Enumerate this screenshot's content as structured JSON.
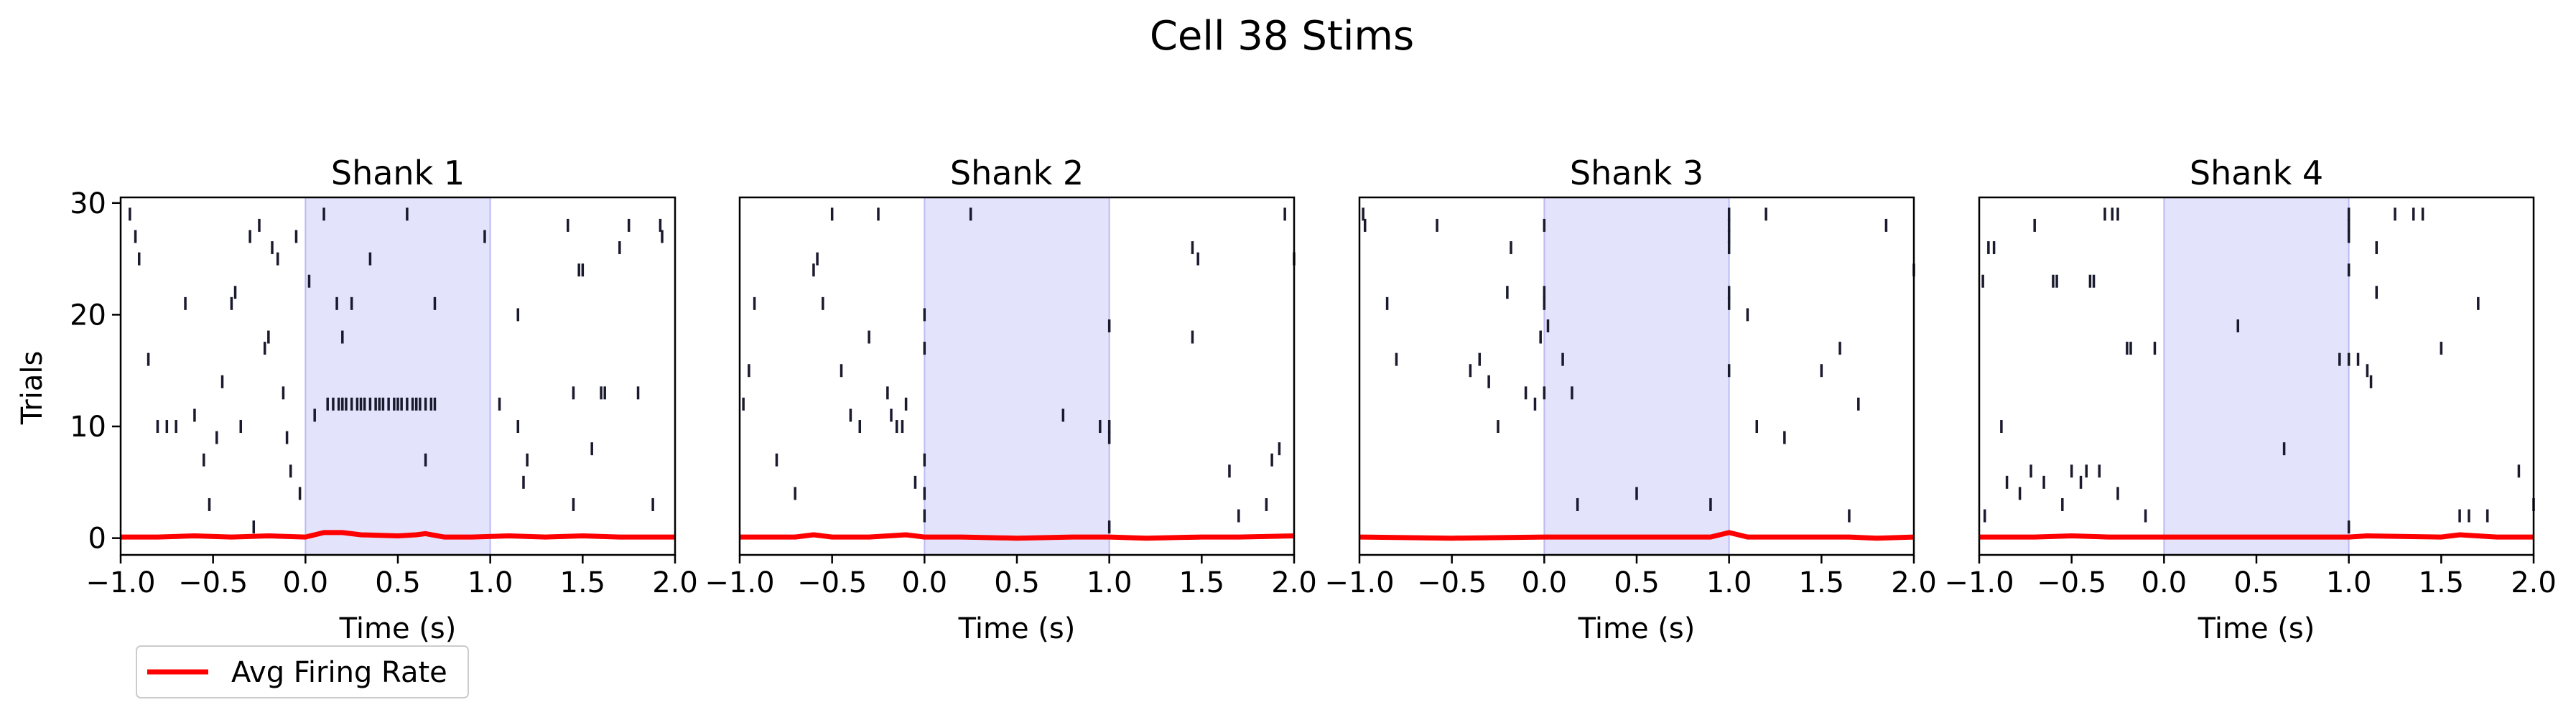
{
  "figure": {
    "title": "Cell 38 Stims",
    "ylabel": "Trials",
    "legend": {
      "label": "Avg Firing Rate",
      "color": "#ff0000",
      "placement": "lower-left"
    }
  },
  "colors": {
    "spike": "#1a1a2e",
    "stim_window": "#c8c8f8",
    "rate_line": "#ff0000"
  },
  "chart_data": [
    {
      "type": "raster",
      "title": "Shank 1",
      "xlabel": "Time (s)",
      "ylabel": "Trials",
      "xlim": [
        -1.0,
        2.0
      ],
      "ylim": [
        -1.5,
        30.5
      ],
      "xticks": [
        -1.0,
        -0.5,
        0.0,
        0.5,
        1.0,
        1.5,
        2.0
      ],
      "xtick_labels": [
        "−1.0",
        "−0.5",
        "0.0",
        "0.5",
        "1.0",
        "1.5",
        "2.0"
      ],
      "yticks": [
        0,
        10,
        20,
        30
      ],
      "ytick_labels": [
        "0",
        "10",
        "20",
        "30"
      ],
      "stim_window": [
        0.0,
        1.0
      ],
      "spikes": [
        [
          -0.95,
          29
        ],
        [
          -0.92,
          27
        ],
        [
          -0.9,
          25
        ],
        [
          -0.85,
          16
        ],
        [
          -0.8,
          10
        ],
        [
          -0.75,
          10
        ],
        [
          -0.7,
          10
        ],
        [
          -0.65,
          21
        ],
        [
          -0.6,
          11
        ],
        [
          -0.55,
          7
        ],
        [
          -0.52,
          3
        ],
        [
          -0.48,
          9
        ],
        [
          -0.45,
          14
        ],
        [
          -0.4,
          21
        ],
        [
          -0.38,
          22
        ],
        [
          -0.35,
          10
        ],
        [
          -0.3,
          27
        ],
        [
          -0.28,
          1
        ],
        [
          -0.25,
          28
        ],
        [
          -0.22,
          17
        ],
        [
          -0.2,
          18
        ],
        [
          -0.18,
          26
        ],
        [
          -0.15,
          25
        ],
        [
          -0.12,
          13
        ],
        [
          -0.1,
          9
        ],
        [
          -0.08,
          6
        ],
        [
          -0.05,
          27
        ],
        [
          -0.03,
          4
        ],
        [
          0.02,
          23
        ],
        [
          0.05,
          11
        ],
        [
          0.1,
          29
        ],
        [
          0.12,
          12
        ],
        [
          0.15,
          12
        ],
        [
          0.17,
          21
        ],
        [
          0.18,
          12
        ],
        [
          0.2,
          12
        ],
        [
          0.2,
          18
        ],
        [
          0.22,
          12
        ],
        [
          0.25,
          21
        ],
        [
          0.25,
          12
        ],
        [
          0.28,
          12
        ],
        [
          0.3,
          12
        ],
        [
          0.32,
          12
        ],
        [
          0.35,
          12
        ],
        [
          0.35,
          25
        ],
        [
          0.38,
          12
        ],
        [
          0.4,
          12
        ],
        [
          0.42,
          12
        ],
        [
          0.45,
          12
        ],
        [
          0.48,
          12
        ],
        [
          0.5,
          12
        ],
        [
          0.52,
          12
        ],
        [
          0.55,
          12
        ],
        [
          0.55,
          29
        ],
        [
          0.58,
          12
        ],
        [
          0.6,
          12
        ],
        [
          0.62,
          12
        ],
        [
          0.65,
          12
        ],
        [
          0.65,
          7
        ],
        [
          0.68,
          12
        ],
        [
          0.7,
          12
        ],
        [
          0.7,
          21
        ],
        [
          0.97,
          27
        ],
        [
          1.05,
          12
        ],
        [
          1.15,
          20
        ],
        [
          1.15,
          10
        ],
        [
          1.18,
          5
        ],
        [
          1.2,
          7
        ],
        [
          1.42,
          28
        ],
        [
          1.45,
          13
        ],
        [
          1.45,
          3
        ],
        [
          1.48,
          24
        ],
        [
          1.5,
          24
        ],
        [
          1.55,
          8
        ],
        [
          1.6,
          13
        ],
        [
          1.62,
          13
        ],
        [
          1.7,
          26
        ],
        [
          1.75,
          28
        ],
        [
          1.8,
          13
        ],
        [
          1.88,
          3
        ],
        [
          1.92,
          28
        ],
        [
          1.93,
          27
        ]
      ],
      "rate": {
        "x": [
          -1.0,
          -0.8,
          -0.6,
          -0.4,
          -0.2,
          0.0,
          0.1,
          0.2,
          0.3,
          0.5,
          0.6,
          0.65,
          0.75,
          0.9,
          1.1,
          1.3,
          1.5,
          1.7,
          2.0
        ],
        "y": [
          0.1,
          0.1,
          0.2,
          0.1,
          0.2,
          0.1,
          0.5,
          0.5,
          0.3,
          0.2,
          0.3,
          0.4,
          0.1,
          0.1,
          0.2,
          0.1,
          0.2,
          0.1,
          0.1
        ]
      }
    },
    {
      "type": "raster",
      "title": "Shank 2",
      "xlabel": "Time (s)",
      "xlim": [
        -1.0,
        2.0
      ],
      "ylim": [
        -1.5,
        30.5
      ],
      "xticks": [
        -1.0,
        -0.5,
        0.0,
        0.5,
        1.0,
        1.5,
        2.0
      ],
      "xtick_labels": [
        "−1.0",
        "−0.5",
        "0.0",
        "0.5",
        "1.0",
        "1.5",
        "2.0"
      ],
      "stim_window": [
        0.0,
        1.0
      ],
      "spikes": [
        [
          -0.98,
          12
        ],
        [
          -0.95,
          15
        ],
        [
          -0.92,
          21
        ],
        [
          -0.8,
          7
        ],
        [
          -0.7,
          4
        ],
        [
          -0.6,
          24
        ],
        [
          -0.58,
          25
        ],
        [
          -0.55,
          21
        ],
        [
          -0.5,
          29
        ],
        [
          -0.45,
          15
        ],
        [
          -0.4,
          11
        ],
        [
          -0.35,
          10
        ],
        [
          -0.3,
          18
        ],
        [
          -0.25,
          29
        ],
        [
          -0.2,
          13
        ],
        [
          -0.18,
          11
        ],
        [
          -0.15,
          10
        ],
        [
          -0.12,
          10
        ],
        [
          -0.1,
          12
        ],
        [
          -0.05,
          5
        ],
        [
          0.0,
          2
        ],
        [
          0.0,
          7
        ],
        [
          0.0,
          17
        ],
        [
          0.0,
          20
        ],
        [
          0.0,
          4
        ],
        [
          0.25,
          29
        ],
        [
          0.75,
          11
        ],
        [
          0.95,
          10
        ],
        [
          1.0,
          19
        ],
        [
          1.0,
          10
        ],
        [
          1.0,
          9
        ],
        [
          1.0,
          1
        ],
        [
          1.45,
          18
        ],
        [
          1.45,
          26
        ],
        [
          1.48,
          25
        ],
        [
          1.65,
          6
        ],
        [
          1.7,
          2
        ],
        [
          1.85,
          3
        ],
        [
          1.88,
          7
        ],
        [
          1.92,
          8
        ],
        [
          1.95,
          29
        ],
        [
          2.0,
          25
        ]
      ],
      "rate": {
        "x": [
          -1.0,
          -0.7,
          -0.6,
          -0.5,
          -0.3,
          -0.1,
          0.0,
          0.2,
          0.5,
          0.8,
          1.0,
          1.2,
          1.5,
          1.7,
          2.0
        ],
        "y": [
          0.1,
          0.1,
          0.3,
          0.1,
          0.1,
          0.3,
          0.1,
          0.1,
          0.0,
          0.1,
          0.1,
          0.0,
          0.1,
          0.1,
          0.2
        ]
      }
    },
    {
      "type": "raster",
      "title": "Shank 3",
      "xlabel": "Time (s)",
      "xlim": [
        -1.0,
        2.0
      ],
      "ylim": [
        -1.5,
        30.5
      ],
      "xticks": [
        -1.0,
        -0.5,
        0.0,
        0.5,
        1.0,
        1.5,
        2.0
      ],
      "xtick_labels": [
        "−1.0",
        "−0.5",
        "0.0",
        "0.5",
        "1.0",
        "1.5",
        "2.0"
      ],
      "stim_window": [
        0.0,
        1.0
      ],
      "spikes": [
        [
          -0.98,
          29
        ],
        [
          -0.97,
          28
        ],
        [
          -0.85,
          21
        ],
        [
          -0.8,
          16
        ],
        [
          -0.58,
          28
        ],
        [
          -0.4,
          15
        ],
        [
          -0.35,
          16
        ],
        [
          -0.3,
          14
        ],
        [
          -0.25,
          10
        ],
        [
          -0.2,
          22
        ],
        [
          -0.18,
          26
        ],
        [
          -0.1,
          13
        ],
        [
          -0.05,
          12
        ],
        [
          -0.02,
          18
        ],
        [
          0.0,
          13
        ],
        [
          0.0,
          21
        ],
        [
          0.0,
          22
        ],
        [
          0.0,
          28
        ],
        [
          0.02,
          19
        ],
        [
          0.1,
          16
        ],
        [
          0.15,
          13
        ],
        [
          0.18,
          3
        ],
        [
          0.5,
          4
        ],
        [
          0.9,
          3
        ],
        [
          1.0,
          29
        ],
        [
          1.0,
          28
        ],
        [
          1.0,
          27
        ],
        [
          1.0,
          26
        ],
        [
          1.0,
          22
        ],
        [
          1.0,
          21
        ],
        [
          1.0,
          15
        ],
        [
          1.1,
          20
        ],
        [
          1.15,
          10
        ],
        [
          1.2,
          29
        ],
        [
          1.3,
          9
        ],
        [
          1.5,
          15
        ],
        [
          1.6,
          17
        ],
        [
          1.65,
          2
        ],
        [
          1.7,
          12
        ],
        [
          1.85,
          28
        ],
        [
          2.0,
          24
        ]
      ],
      "rate": {
        "x": [
          -1.0,
          -0.5,
          0.0,
          0.5,
          0.9,
          1.0,
          1.1,
          1.5,
          1.65,
          1.8,
          2.0
        ],
        "y": [
          0.1,
          0.0,
          0.1,
          0.1,
          0.1,
          0.5,
          0.1,
          0.1,
          0.1,
          0.0,
          0.1
        ]
      }
    },
    {
      "type": "raster",
      "title": "Shank 4",
      "xlabel": "Time (s)",
      "xlim": [
        -1.0,
        2.0
      ],
      "ylim": [
        -1.5,
        30.5
      ],
      "xticks": [
        -1.0,
        -0.5,
        0.0,
        0.5,
        1.0,
        1.5,
        2.0
      ],
      "xtick_labels": [
        "−1.0",
        "−0.5",
        "0.0",
        "0.5",
        "1.0",
        "1.5",
        "2.0"
      ],
      "stim_window": [
        0.0,
        1.0
      ],
      "spikes": [
        [
          -0.98,
          23
        ],
        [
          -0.97,
          2
        ],
        [
          -0.95,
          26
        ],
        [
          -0.92,
          26
        ],
        [
          -0.88,
          10
        ],
        [
          -0.85,
          5
        ],
        [
          -0.78,
          4
        ],
        [
          -0.72,
          6
        ],
        [
          -0.7,
          28
        ],
        [
          -0.65,
          5
        ],
        [
          -0.6,
          23
        ],
        [
          -0.58,
          23
        ],
        [
          -0.55,
          3
        ],
        [
          -0.5,
          6
        ],
        [
          -0.45,
          5
        ],
        [
          -0.42,
          6
        ],
        [
          -0.4,
          23
        ],
        [
          -0.38,
          23
        ],
        [
          -0.35,
          6
        ],
        [
          -0.32,
          29
        ],
        [
          -0.28,
          29
        ],
        [
          -0.25,
          29
        ],
        [
          -0.25,
          4
        ],
        [
          -0.2,
          17
        ],
        [
          -0.18,
          17
        ],
        [
          -0.1,
          2
        ],
        [
          -0.05,
          17
        ],
        [
          0.4,
          19
        ],
        [
          0.65,
          8
        ],
        [
          0.95,
          16
        ],
        [
          1.0,
          28
        ],
        [
          1.0,
          29
        ],
        [
          1.0,
          27
        ],
        [
          1.0,
          24
        ],
        [
          1.0,
          16
        ],
        [
          1.0,
          1
        ],
        [
          1.05,
          16
        ],
        [
          1.1,
          15
        ],
        [
          1.12,
          14
        ],
        [
          1.15,
          26
        ],
        [
          1.15,
          22
        ],
        [
          1.25,
          29
        ],
        [
          1.35,
          29
        ],
        [
          1.4,
          29
        ],
        [
          1.5,
          17
        ],
        [
          1.6,
          2
        ],
        [
          1.65,
          2
        ],
        [
          1.7,
          21
        ],
        [
          1.75,
          2
        ],
        [
          1.92,
          6
        ],
        [
          2.0,
          3
        ]
      ],
      "rate": {
        "x": [
          -1.0,
          -0.7,
          -0.5,
          -0.3,
          0.0,
          0.5,
          1.0,
          1.1,
          1.5,
          1.6,
          1.8,
          2.0
        ],
        "y": [
          0.1,
          0.1,
          0.2,
          0.1,
          0.1,
          0.1,
          0.1,
          0.2,
          0.1,
          0.3,
          0.1,
          0.1
        ]
      }
    }
  ]
}
